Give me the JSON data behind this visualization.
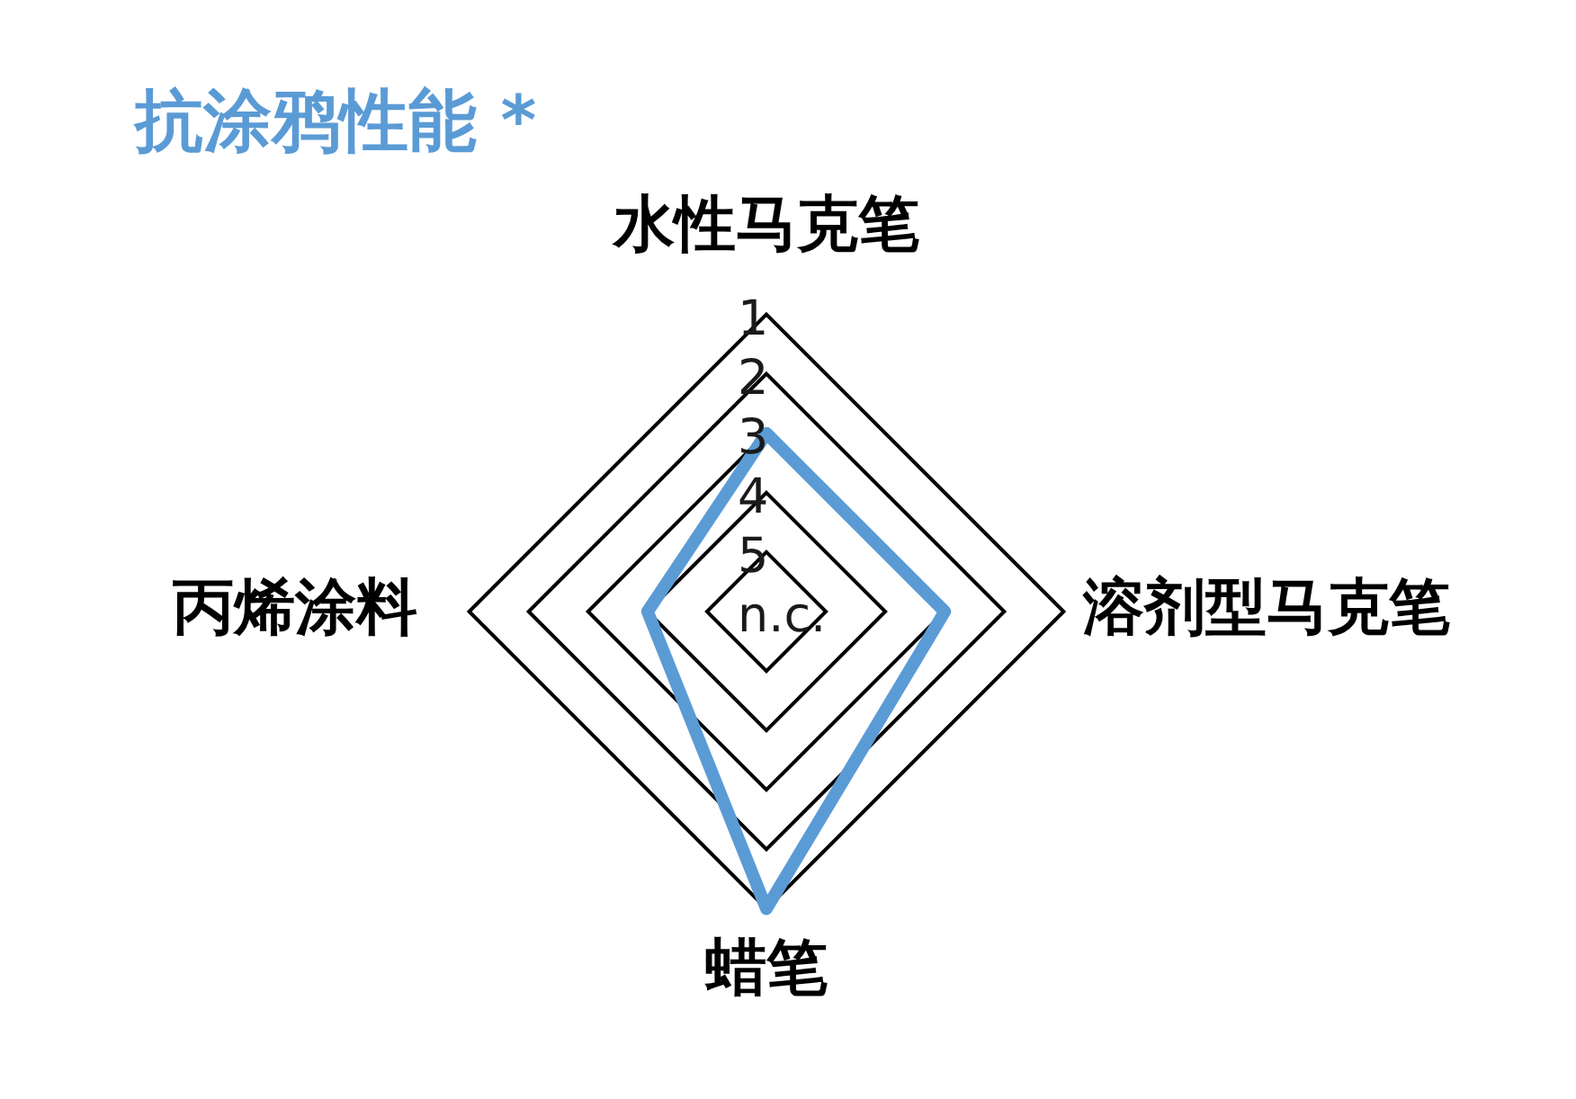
{
  "chart_data": {
    "type": "radar",
    "title": "抗涂鸦性能 *",
    "categories": [
      "水性马克笔",
      "溶剂型马克笔",
      "蜡笔",
      "丙烯涂料"
    ],
    "series": [
      {
        "color": "#5b9bd5",
        "values": [
          3,
          3,
          1,
          4
        ]
      }
    ],
    "ylim": [
      6,
      1
    ],
    "yticks": [
      {
        "value": 6,
        "label": "n.c."
      },
      5,
      4,
      3,
      2,
      1
    ],
    "grid": true,
    "marker": "none"
  }
}
